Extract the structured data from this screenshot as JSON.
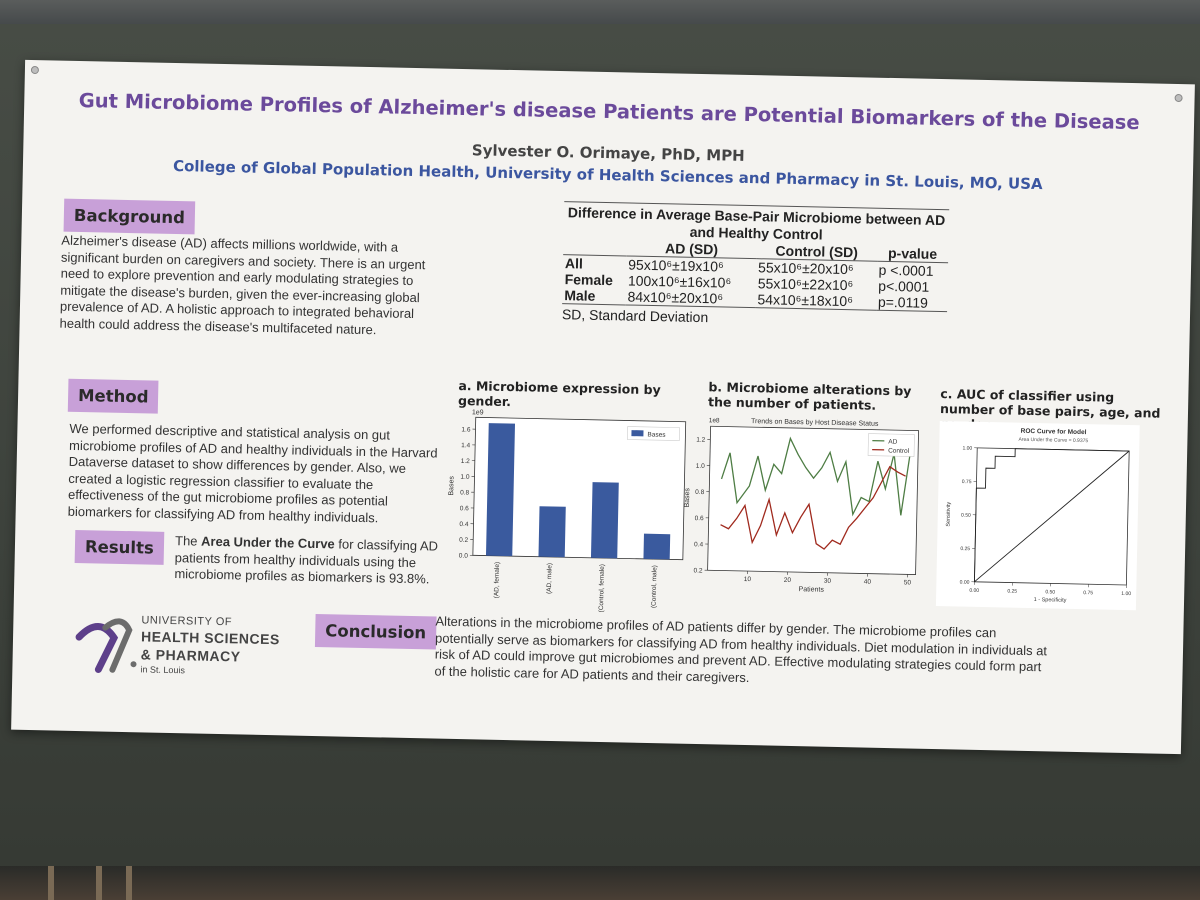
{
  "poster": {
    "title": "Gut Microbiome Profiles of Alzheimer's disease Patients are Potential Biomarkers of the Disease",
    "author": "Sylvester O. Orimaye, PhD, MPH",
    "affiliation": "College of Global Population Health, University of Health Sciences and Pharmacy in St. Louis, MO, USA"
  },
  "background": {
    "header": "Background",
    "text": "Alzheimer's disease (AD) affects millions worldwide, with a significant burden on caregivers and society. There is an urgent need to explore prevention and early modulating strategies to mitigate the disease's burden, given the ever-increasing global prevalence of AD. A holistic approach to integrated behavioral health could address the disease's multifaceted nature."
  },
  "method": {
    "header": "Method",
    "text": "We performed descriptive and statistical analysis on gut microbiome profiles of AD and healthy individuals in the Harvard Dataverse dataset to show differences by gender. Also, we created a logistic regression classifier to evaluate the effectiveness of the gut microbiome profiles as potential biomarkers for classifying AD from healthy individuals."
  },
  "results": {
    "header": "Results",
    "text_before": "The ",
    "text_bold": "Area Under the Curve",
    "text_after": " for classifying AD patients from healthy individuals using the microbiome profiles as biomarkers is 93.8%."
  },
  "conclusion": {
    "header": "Conclusion",
    "text": "Alterations in the microbiome profiles of AD patients differ by gender. The microbiome profiles can potentially serve as biomarkers for classifying AD from healthy individuals. Diet modulation in individuals at risk of AD could improve gut microbiomes and prevent AD. Effective modulating strategies could form part of the holistic care for AD patients and their caregivers."
  },
  "table": {
    "title": "Difference in Average Base-Pair Microbiome between AD and Healthy Control",
    "headers": [
      "",
      "AD (SD)",
      "Control (SD)",
      "p-value"
    ],
    "rows": [
      {
        "label": "All",
        "ad": "95x10⁶±19x10⁶",
        "control": "55x10⁶±20x10⁶",
        "p": "p <.0001"
      },
      {
        "label": "Female",
        "ad": "100x10⁶±16x10⁶",
        "control": "55x10⁶±22x10⁶",
        "p": "p<.0001"
      },
      {
        "label": "Male",
        "ad": "84x10⁶±20x10⁶",
        "control": "54x10⁶±18x10⁶",
        "p": "p=.0119"
      }
    ],
    "footnote": "SD, Standard Deviation"
  },
  "captions": {
    "a": "a. Microbiome expression by gender.",
    "b": "b. Microbiome alterations by the number of patients.",
    "c": "c. AUC of classifier using number of base pairs, age, and gender."
  },
  "logo": {
    "line1": "UNIVERSITY OF",
    "line2": "HEALTH SCIENCES",
    "line3": "& PHARMACY",
    "line4": "in St. Louis"
  },
  "chart_data": [
    {
      "type": "bar",
      "ylabel": "Bases",
      "scale_label": "1e9",
      "categories": [
        "(AD, female)",
        "(AD, male)",
        "(Control, female)",
        "(Control, male)"
      ],
      "series": [
        {
          "name": "Bases",
          "values": [
            1.68,
            0.64,
            0.96,
            0.32
          ]
        }
      ],
      "ylim": [
        0,
        1.75
      ],
      "yticks": [
        0.0,
        0.2,
        0.4,
        0.6,
        0.8,
        1.0,
        1.2,
        1.4,
        1.6
      ],
      "legend": "top-right",
      "color": "#3a5a9e"
    },
    {
      "type": "line",
      "title": "Trends on Bases by Host Disease Status",
      "xlabel": "Patients",
      "ylabel": "Bases",
      "scale_label": "1e8",
      "xlim": [
        0,
        52
      ],
      "ylim": [
        0.2,
        1.3
      ],
      "xticks": [
        10,
        20,
        30,
        40,
        50
      ],
      "yticks": [
        0.2,
        0.4,
        0.6,
        0.8,
        1.0,
        1.2
      ],
      "legend": "top-right",
      "series": [
        {
          "name": "AD",
          "color": "#4e7d44",
          "x": [
            3,
            5,
            7,
            10,
            12,
            14,
            16,
            18,
            20,
            22,
            24,
            26,
            28,
            30,
            32,
            34,
            36,
            38,
            40,
            42,
            44,
            46,
            48,
            50
          ],
          "y": [
            0.9,
            1.1,
            0.72,
            0.85,
            1.08,
            0.82,
            1.02,
            0.95,
            1.22,
            1.1,
            1.0,
            0.92,
            1.0,
            1.12,
            0.9,
            1.05,
            0.65,
            0.78,
            0.75,
            1.06,
            0.85,
            1.12,
            0.65,
            1.12
          ]
        },
        {
          "name": "Control",
          "color": "#a02a1e",
          "x": [
            3,
            5,
            7,
            9,
            11,
            13,
            15,
            17,
            19,
            21,
            23,
            25,
            27,
            29,
            31,
            33,
            35,
            37,
            39,
            41,
            43,
            45,
            47,
            49
          ],
          "y": [
            0.55,
            0.52,
            0.6,
            0.7,
            0.42,
            0.55,
            0.75,
            0.48,
            0.65,
            0.5,
            0.62,
            0.72,
            0.42,
            0.38,
            0.45,
            0.42,
            0.55,
            0.62,
            0.7,
            0.78,
            0.9,
            1.02,
            0.98,
            0.95
          ]
        }
      ]
    },
    {
      "type": "line",
      "title": "ROC Curve for Model",
      "subtitle": "Area Under the Curve = 0.9375",
      "xlabel": "1 - Specificity",
      "ylabel": "Sensitivity",
      "xlim": [
        0,
        1
      ],
      "ylim": [
        0,
        1
      ],
      "xticks": [
        0.0,
        0.25,
        0.5,
        0.75,
        1.0
      ],
      "yticks": [
        0.0,
        0.25,
        0.5,
        0.75,
        1.0
      ],
      "series": [
        {
          "name": "ROC",
          "color": "#222222",
          "x": [
            0.0,
            0.0,
            0.06,
            0.06,
            0.12,
            0.12,
            0.25,
            0.25,
            1.0
          ],
          "y": [
            0.0,
            0.7,
            0.7,
            0.85,
            0.85,
            0.94,
            0.94,
            1.0,
            1.0
          ]
        },
        {
          "name": "Chance",
          "color": "#222222",
          "x": [
            0.0,
            1.0
          ],
          "y": [
            0.0,
            1.0
          ]
        }
      ]
    }
  ]
}
